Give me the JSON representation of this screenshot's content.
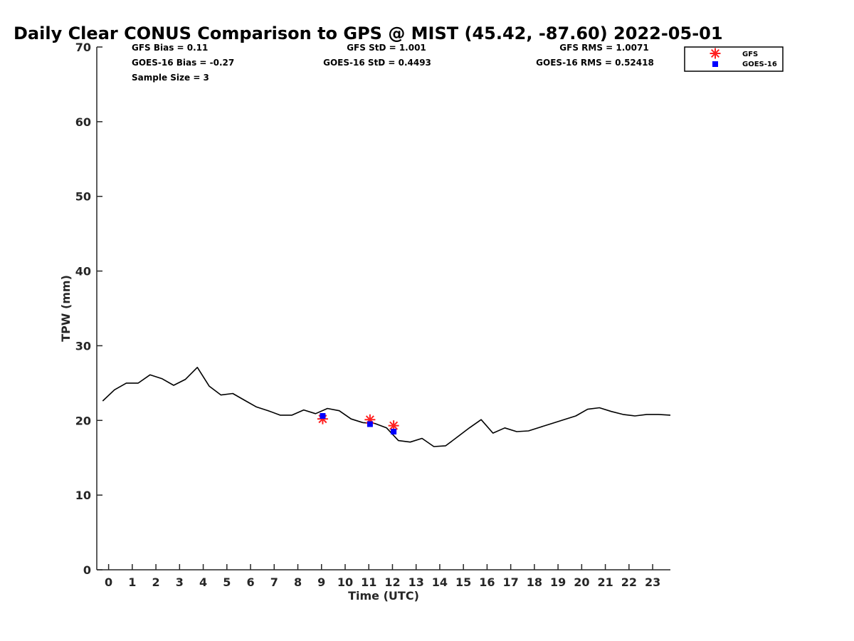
{
  "chart_data": {
    "type": "line",
    "title": "Daily Clear CONUS Comparison to GPS @ MIST (45.42, -87.60) 2022-05-01",
    "xlabel": "Time (UTC)",
    "ylabel": "TPW (mm)",
    "xlim": [
      -0.5,
      23.75
    ],
    "ylim": [
      0,
      70
    ],
    "xticks": [
      "0",
      "1",
      "2",
      "3",
      "4",
      "5",
      "6",
      "7",
      "8",
      "9",
      "10",
      "11",
      "12",
      "13",
      "14",
      "15",
      "16",
      "17",
      "18",
      "19",
      "20",
      "21",
      "22",
      "23"
    ],
    "yticks": [
      "0",
      "10",
      "20",
      "30",
      "40",
      "50",
      "60",
      "70"
    ],
    "grid": false,
    "legend_position": "top-right",
    "series": [
      {
        "kind": "line",
        "color": "#000000",
        "x": [
          -0.25,
          0.25,
          0.75,
          1.25,
          1.75,
          2.25,
          2.75,
          3.25,
          3.75,
          4.25,
          4.75,
          5.25,
          5.75,
          6.25,
          6.75,
          7.25,
          7.75,
          8.25,
          8.75,
          9.25,
          9.75,
          10.25,
          10.75,
          11.25,
          11.75,
          12.25,
          12.75,
          13.25,
          13.75,
          14.25,
          14.75,
          15.25,
          15.75,
          16.25,
          16.75,
          17.25,
          17.75,
          18.25,
          18.75,
          19.25,
          19.75,
          20.25,
          20.75,
          21.25,
          21.75,
          22.25,
          22.75,
          23.25,
          23.75
        ],
        "y": [
          22.6,
          24.1,
          25.0,
          25.0,
          26.1,
          25.6,
          24.7,
          25.5,
          27.1,
          24.6,
          23.4,
          23.6,
          22.7,
          21.8,
          21.3,
          20.7,
          20.7,
          21.4,
          20.9,
          21.6,
          21.3,
          20.2,
          19.7,
          19.6,
          19.0,
          17.3,
          17.1,
          17.6,
          16.5,
          16.6,
          17.8,
          19.0,
          20.1,
          18.3,
          19.0,
          18.5,
          18.6,
          19.1,
          19.6,
          20.1,
          20.6,
          21.5,
          21.7,
          21.2,
          20.8,
          20.6,
          20.8,
          20.8,
          20.7
        ]
      },
      {
        "name": "GFS",
        "kind": "star",
        "color": "#ff2020",
        "x": [
          9.05,
          11.05,
          12.05
        ],
        "y": [
          20.2,
          20.1,
          19.3
        ]
      },
      {
        "name": "GOES-16",
        "kind": "square",
        "color": "#0000ff",
        "x": [
          9.05,
          11.05,
          12.05
        ],
        "y": [
          20.6,
          19.5,
          18.5
        ]
      }
    ],
    "stats": [
      "GFS Bias = 0.11",
      "GOES-16 Bias = -0.27",
      "Sample Size = 3",
      "GFS StD = 1.001",
      "GOES-16 StD = 0.4493",
      "GFS RMS = 1.0071",
      "GOES-16 RMS = 0.52418"
    ]
  }
}
